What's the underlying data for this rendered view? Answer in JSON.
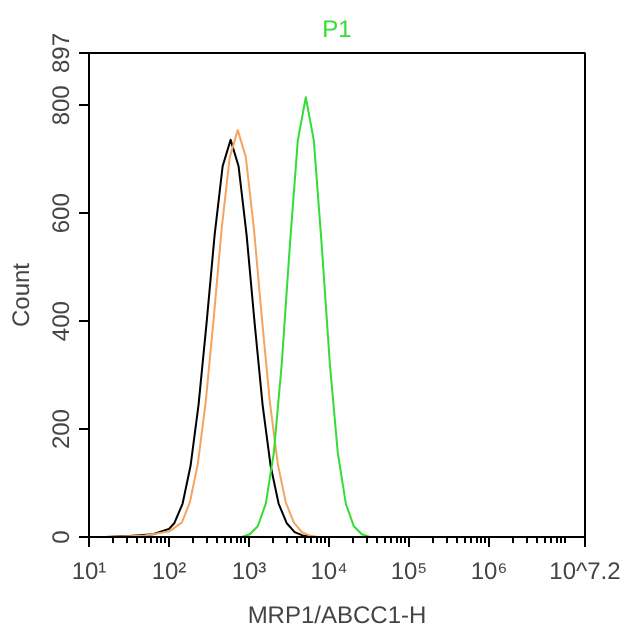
{
  "chart_data": {
    "type": "line",
    "title": "P1",
    "xlabel": "MRP1/ABCC1-H",
    "ylabel": "Count",
    "log": "x",
    "grid": false,
    "marker": "none",
    "line_style": "solid",
    "xlim": [
      10,
      15848932
    ],
    "xticks": [
      {
        "value": 10,
        "label": "10¹"
      },
      {
        "value": 100,
        "label": "10²"
      },
      {
        "value": 1000,
        "label": "10³"
      },
      {
        "value": 10000,
        "label": "10⁴"
      },
      {
        "value": 100000,
        "label": "10⁵"
      },
      {
        "value": 1000000,
        "label": "10⁶"
      },
      {
        "value": 15848932,
        "label": "10^7.2"
      }
    ],
    "ylim": [
      0,
      897
    ],
    "yticks": [
      0,
      200,
      400,
      600,
      800,
      897
    ],
    "series": [
      {
        "color": "#000000",
        "x": [
          16,
          32,
          63,
          100,
          117,
          148,
          186,
          234,
          295,
          372,
          468,
          589,
          741,
          933,
          1175,
          1479,
          1862,
          2344,
          2951,
          3715,
          4677,
          5888
        ],
        "values": [
          0,
          2,
          5,
          15,
          26,
          62,
          132,
          245,
          397,
          560,
          687,
          736,
          687,
          560,
          397,
          245,
          132,
          62,
          26,
          9,
          3,
          0
        ]
      },
      {
        "color": "#f4a460",
        "x": [
          20,
          50,
          100,
          145,
          182,
          229,
          288,
          363,
          457,
          575,
          724,
          912,
          1148,
          1445,
          1820,
          2291,
          2884,
          3631,
          4571,
          5754,
          7244
        ],
        "values": [
          0,
          3,
          10,
          27,
          64,
          135,
          251,
          407,
          574,
          704,
          754,
          704,
          574,
          407,
          251,
          135,
          64,
          27,
          9,
          3,
          0
        ]
      },
      {
        "color": "#33dd33",
        "x": [
          813,
          1023,
          1288,
          1622,
          2042,
          2570,
          3236,
          4074,
          5129,
          6457,
          8128,
          10233,
          12882,
          16218,
          20417,
          25704,
          32359
        ],
        "values": [
          0,
          5,
          20,
          62,
          156,
          322,
          539,
          735,
          815,
          735,
          539,
          322,
          156,
          62,
          20,
          5,
          0
        ]
      }
    ]
  }
}
